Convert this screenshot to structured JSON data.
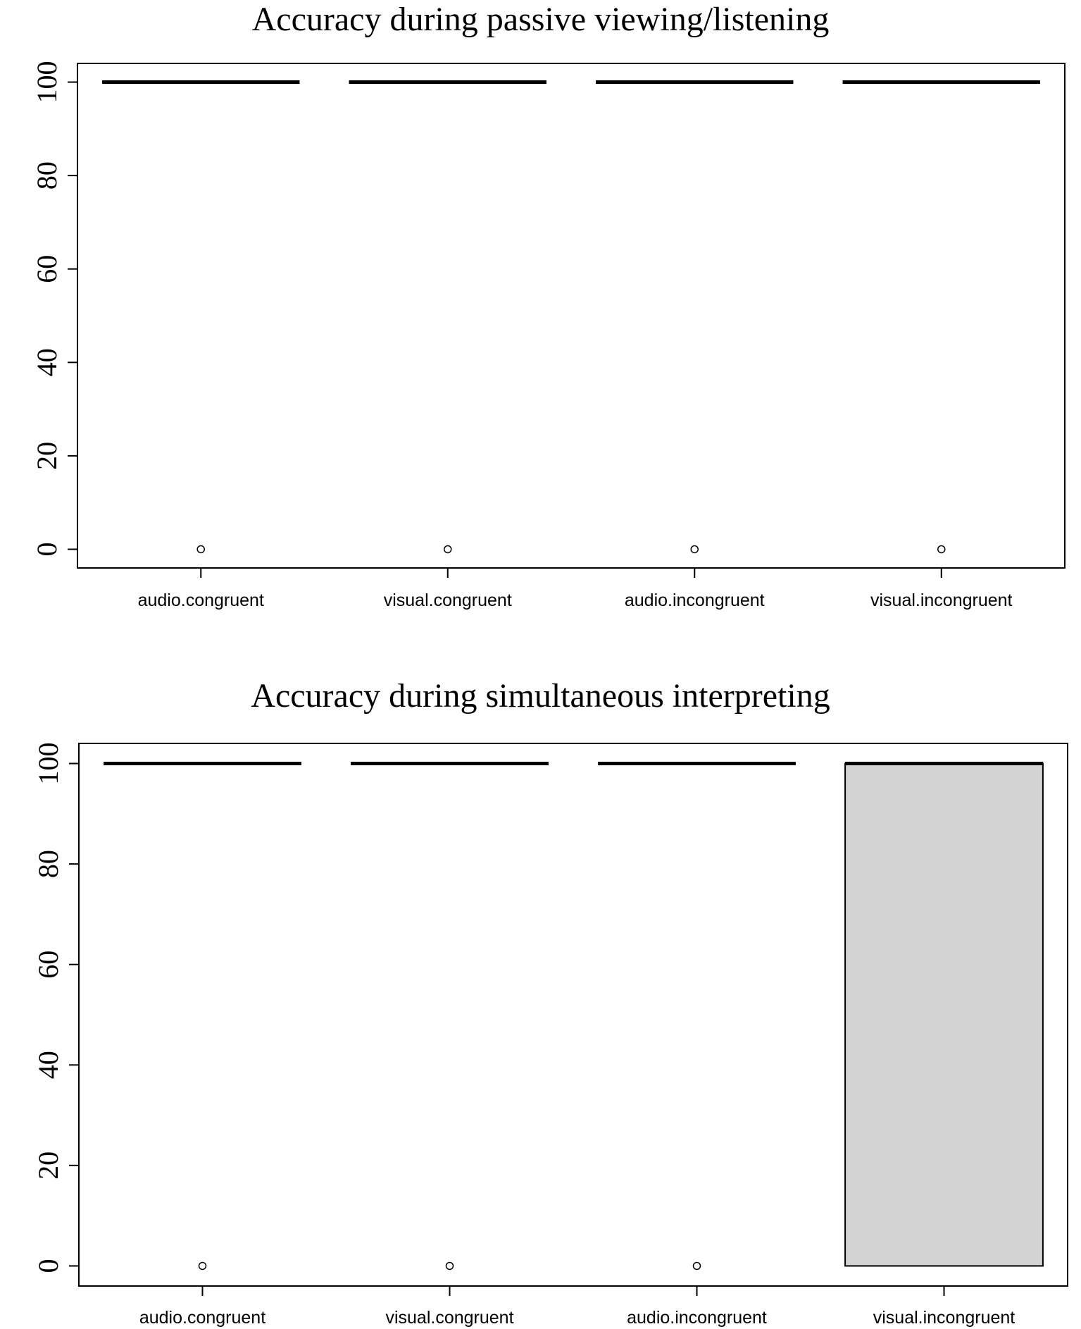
{
  "chart_data": [
    {
      "type": "box",
      "title": "Accuracy during passive viewing/listening",
      "xlabel": "",
      "ylabel": "",
      "ylim": [
        -4,
        104
      ],
      "yticks": [
        0,
        20,
        40,
        60,
        80,
        100
      ],
      "categories": [
        "audio.congruent",
        "visual.congruent",
        "audio.incongruent",
        "visual.incongruent"
      ],
      "boxes": [
        {
          "category": "audio.congruent",
          "q1": 100,
          "median": 100,
          "q3": 100,
          "whisker_low": 100,
          "whisker_high": 100,
          "outliers": [
            0
          ]
        },
        {
          "category": "visual.congruent",
          "q1": 100,
          "median": 100,
          "q3": 100,
          "whisker_low": 100,
          "whisker_high": 100,
          "outliers": [
            0
          ]
        },
        {
          "category": "audio.incongruent",
          "q1": 100,
          "median": 100,
          "q3": 100,
          "whisker_low": 100,
          "whisker_high": 100,
          "outliers": [
            0
          ]
        },
        {
          "category": "visual.incongruent",
          "q1": 100,
          "median": 100,
          "q3": 100,
          "whisker_low": 100,
          "whisker_high": 100,
          "outliers": [
            0
          ]
        }
      ],
      "box_fill": "#d3d3d3",
      "grid": false
    },
    {
      "type": "box",
      "title": "Accuracy during simultaneous interpreting",
      "xlabel": "",
      "ylabel": "",
      "ylim": [
        -4,
        104
      ],
      "yticks": [
        0,
        20,
        40,
        60,
        80,
        100
      ],
      "categories": [
        "audio.congruent",
        "visual.congruent",
        "audio.incongruent",
        "visual.incongruent"
      ],
      "boxes": [
        {
          "category": "audio.congruent",
          "q1": 100,
          "median": 100,
          "q3": 100,
          "whisker_low": 100,
          "whisker_high": 100,
          "outliers": [
            0
          ]
        },
        {
          "category": "visual.congruent",
          "q1": 100,
          "median": 100,
          "q3": 100,
          "whisker_low": 100,
          "whisker_high": 100,
          "outliers": [
            0
          ]
        },
        {
          "category": "audio.incongruent",
          "q1": 100,
          "median": 100,
          "q3": 100,
          "whisker_low": 100,
          "whisker_high": 100,
          "outliers": [
            0
          ]
        },
        {
          "category": "visual.incongruent",
          "q1": 0,
          "median": 100,
          "q3": 100,
          "whisker_low": 0,
          "whisker_high": 100,
          "outliers": []
        }
      ],
      "box_fill": "#d3d3d3",
      "grid": false
    }
  ]
}
